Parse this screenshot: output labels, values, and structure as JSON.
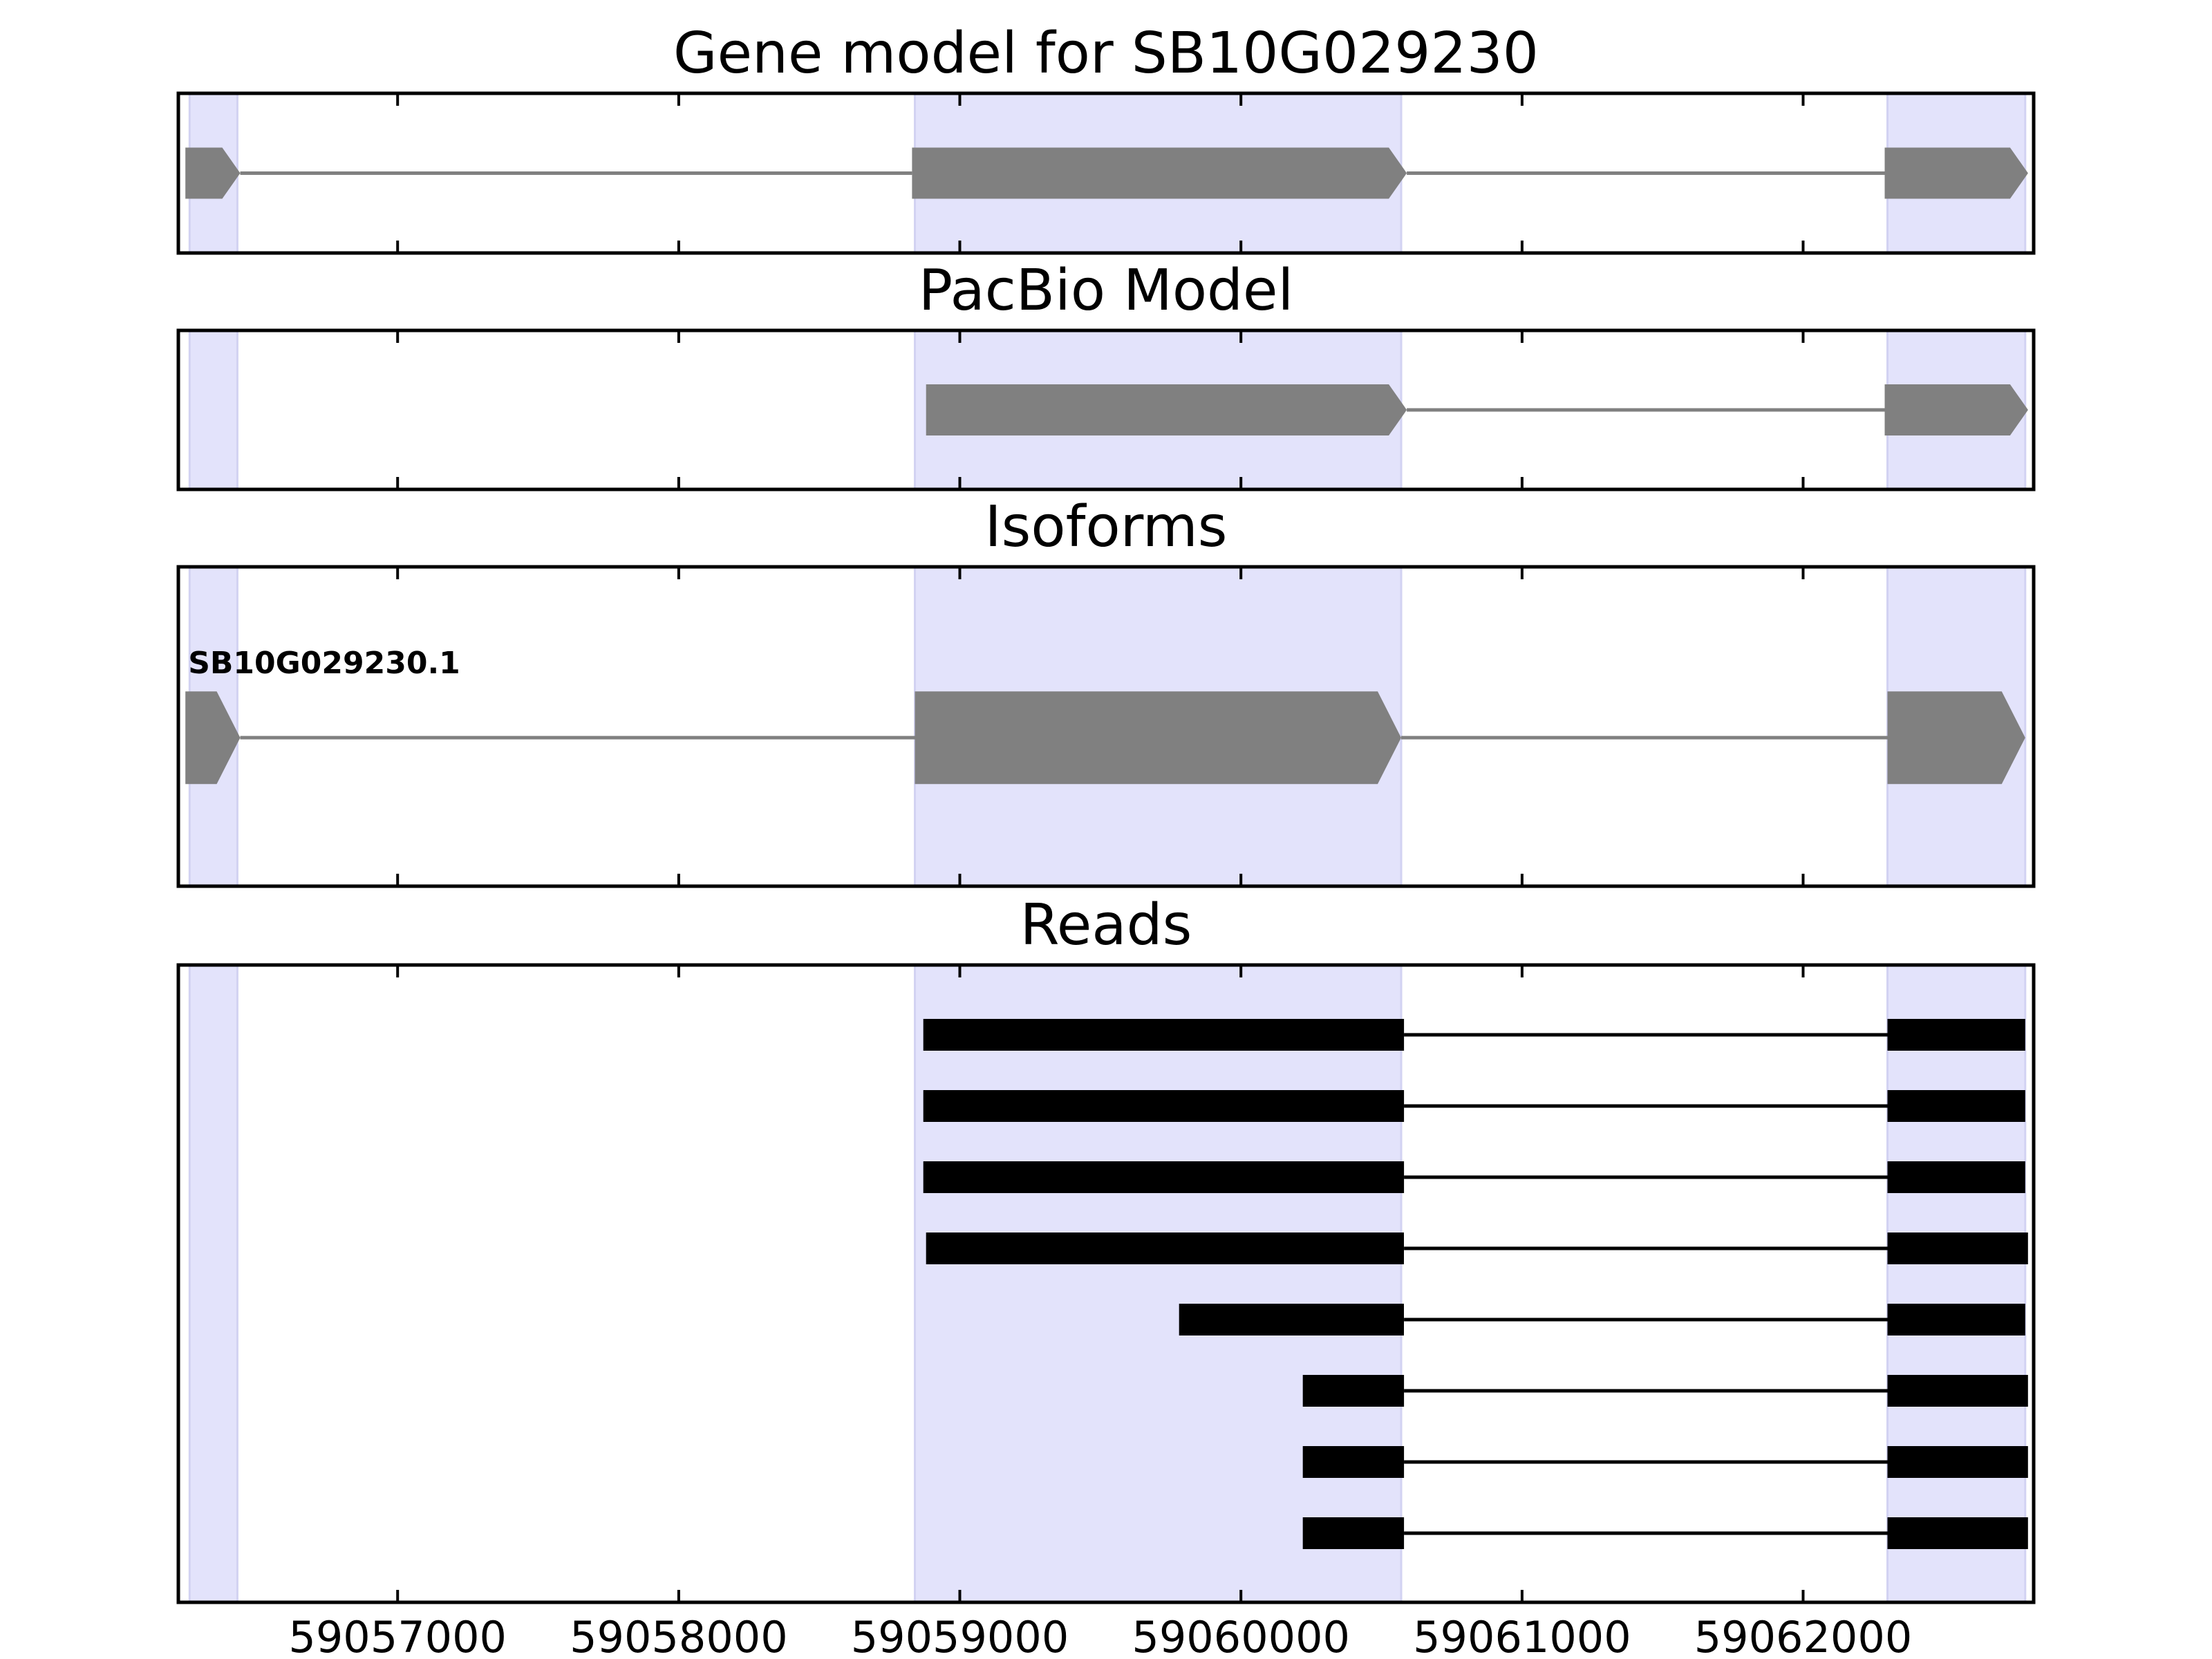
{
  "chart_data": {
    "type": "gene-track",
    "xlim": [
      59056220,
      59062820
    ],
    "x_ticks": [
      59057000,
      59058000,
      59059000,
      59060000,
      59061000,
      59062000
    ],
    "x_tick_labels": [
      "59057000",
      "59058000",
      "59059000",
      "59060000",
      "59061000",
      "59062000"
    ],
    "highlight_regions": [
      [
        59056260,
        59056430
      ],
      [
        59058840,
        59060570
      ],
      [
        59062300,
        59062790
      ]
    ],
    "highlight_color": "#e3e3fb",
    "feature_color": "#808080",
    "read_color": "#000000",
    "panels": [
      {
        "title": "Gene model for SB10G029230",
        "kind": "model",
        "models": [
          {
            "exons": [
              [
                59056245,
                59056440
              ],
              [
                59058830,
                59060590
              ],
              [
                59062290,
                59062800
              ]
            ]
          }
        ]
      },
      {
        "title": "PacBio Model",
        "kind": "model",
        "models": [
          {
            "exons": [
              [
                59058880,
                59060590
              ],
              [
                59062290,
                59062800
              ]
            ]
          }
        ]
      },
      {
        "title": "Isoforms",
        "kind": "isoform",
        "models": [
          {
            "label": "SB10G029230.1",
            "exons": [
              [
                59056245,
                59056440
              ],
              [
                59058840,
                59060570
              ],
              [
                59062300,
                59062790
              ]
            ]
          }
        ]
      },
      {
        "title": "Reads",
        "kind": "reads",
        "reads": [
          {
            "exons": [
              [
                59058870,
                59060580
              ],
              [
                59062300,
                59062790
              ]
            ]
          },
          {
            "exons": [
              [
                59058870,
                59060580
              ],
              [
                59062300,
                59062790
              ]
            ]
          },
          {
            "exons": [
              [
                59058870,
                59060580
              ],
              [
                59062300,
                59062790
              ]
            ]
          },
          {
            "exons": [
              [
                59058880,
                59060580
              ],
              [
                59062300,
                59062800
              ]
            ]
          },
          {
            "exons": [
              [
                59059780,
                59060580
              ],
              [
                59062300,
                59062790
              ]
            ]
          },
          {
            "exons": [
              [
                59060220,
                59060580
              ],
              [
                59062300,
                59062800
              ]
            ]
          },
          {
            "exons": [
              [
                59060220,
                59060580
              ],
              [
                59062300,
                59062800
              ]
            ]
          },
          {
            "exons": [
              [
                59060220,
                59060580
              ],
              [
                59062300,
                59062800
              ]
            ]
          }
        ]
      }
    ]
  }
}
